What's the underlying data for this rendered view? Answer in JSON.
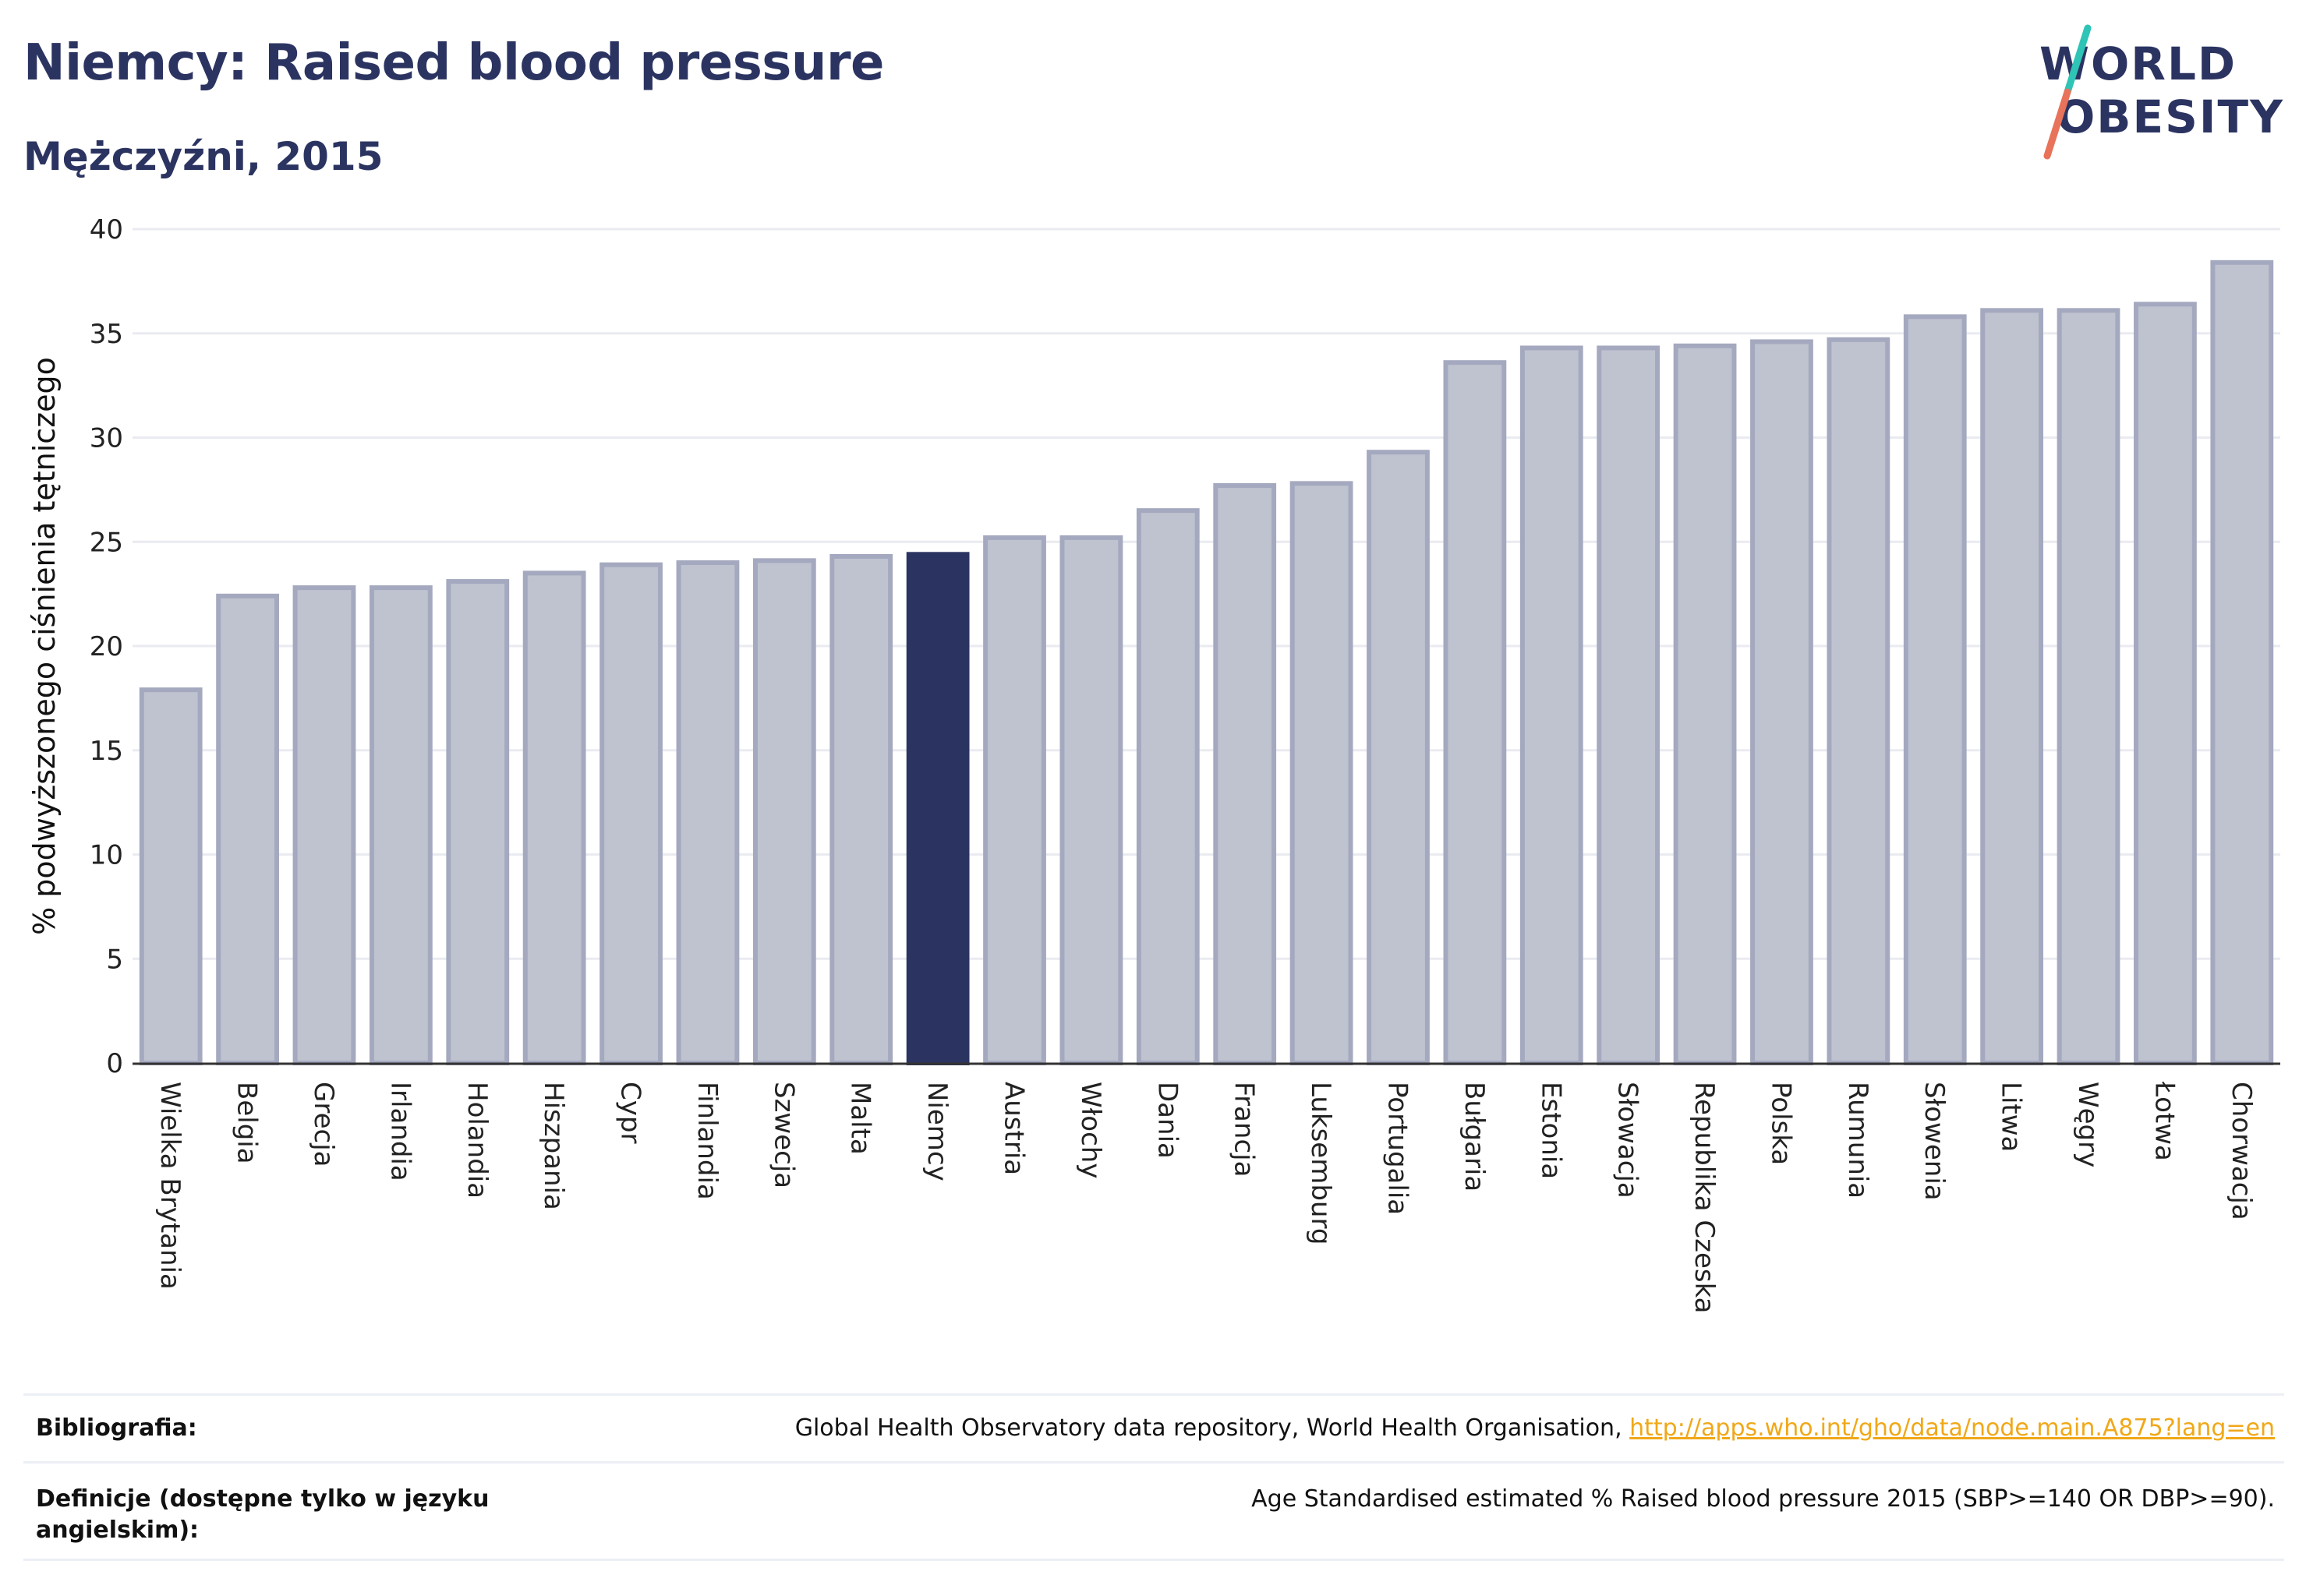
{
  "header": {
    "title": "Niemcy: Raised blood pressure",
    "subtitle": "Mężczyźni, 2015"
  },
  "logo": {
    "line1": "WORLD",
    "line2": "OBESITY",
    "colors": {
      "text": "#2b3461",
      "slash_top": "#2ec4b6",
      "slash_bottom": "#e8735a"
    }
  },
  "chart_data": {
    "type": "bar",
    "title": "",
    "xlabel": "",
    "ylabel": "% podwyższonego ciśnienia tętniczego",
    "ylim": [
      0,
      40
    ],
    "yticks": [
      0,
      5,
      10,
      15,
      20,
      25,
      30,
      35,
      40
    ],
    "grid": true,
    "legend": "none",
    "highlight": "Niemcy",
    "colors": {
      "bar": "#bfc3d0",
      "bar_edge": "#a4a9bf",
      "highlight": "#2b3461",
      "grid": "#e9ebf1",
      "axis": "#333333"
    },
    "categories": [
      "Wielka Brytania",
      "Belgia",
      "Grecja",
      "Irlandia",
      "Holandia",
      "Hiszpania",
      "Cypr",
      "Finlandia",
      "Szwecja",
      "Malta",
      "Niemcy",
      "Austria",
      "Włochy",
      "Dania",
      "Francja",
      "Luksemburg",
      "Portugalia",
      "Bułgaria",
      "Estonia",
      "Słowacja",
      "Republika Czeska",
      "Polska",
      "Rumunia",
      "Słowenia",
      "Litwa",
      "Węgry",
      "Łotwa",
      "Chorwacja"
    ],
    "values": [
      17.9,
      22.4,
      22.8,
      22.8,
      23.1,
      23.5,
      23.9,
      24.0,
      24.1,
      24.3,
      24.4,
      25.2,
      25.2,
      26.5,
      27.7,
      27.8,
      29.3,
      33.6,
      34.3,
      34.3,
      34.4,
      34.6,
      34.7,
      35.8,
      36.1,
      36.1,
      36.4,
      38.4
    ]
  },
  "footer": {
    "bibliography_label": "Bibliografia:",
    "bibliography_text": "Global Health Observatory data repository, World Health Organisation, ",
    "bibliography_link": "http://apps.who.int/gho/data/node.main.A875?lang=en",
    "definitions_label": "Definicje (dostępne tylko w języku angielskim):",
    "definitions_text": "Age Standardised estimated % Raised blood pressure 2015 (SBP>=140 OR DBP>=90)."
  }
}
